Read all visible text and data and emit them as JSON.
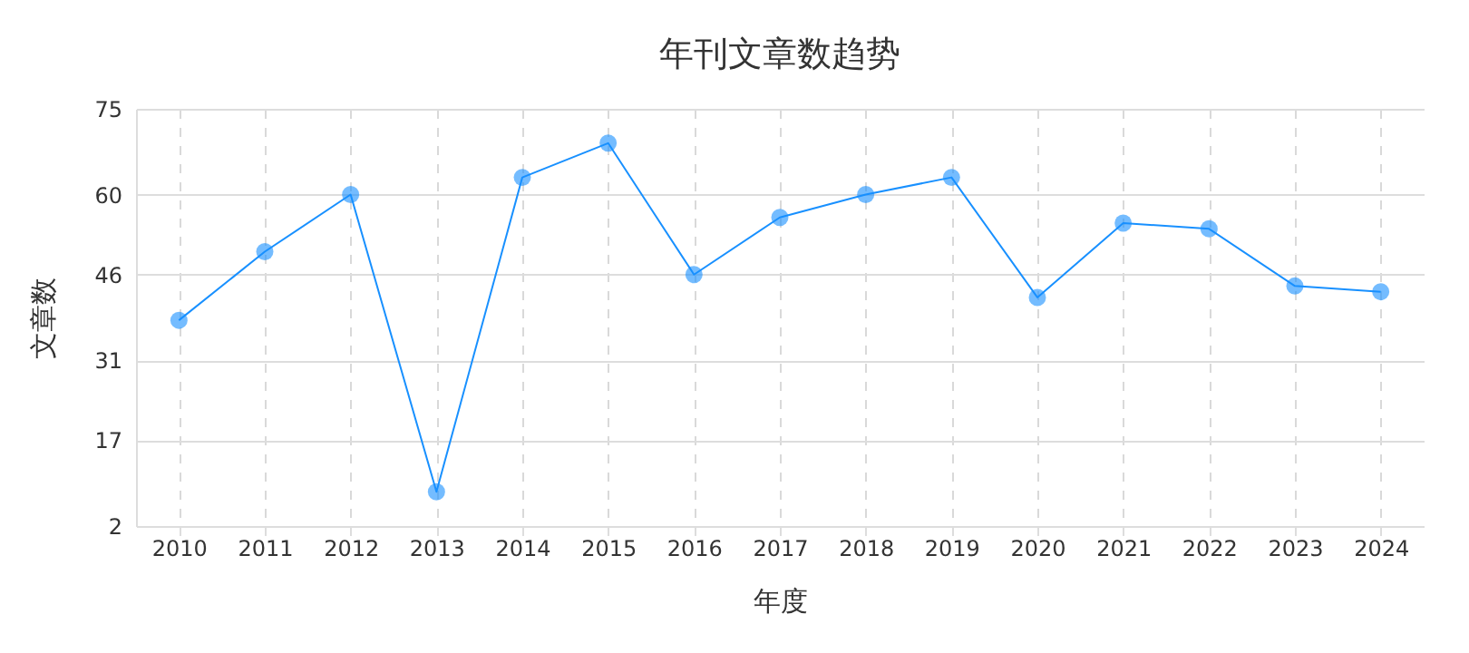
{
  "chart_data": {
    "type": "line",
    "title": "年刊文章数趋势",
    "xlabel": "年度",
    "ylabel": "文章数",
    "categories": [
      "2010",
      "2011",
      "2012",
      "2013",
      "2014",
      "2015",
      "2016",
      "2017",
      "2018",
      "2019",
      "2020",
      "2021",
      "2022",
      "2023",
      "2024"
    ],
    "series": [
      {
        "color": "#1890ff",
        "values": [
          38,
          50,
          60,
          8,
          63,
          69,
          46,
          56,
          60,
          63,
          42,
          55,
          54,
          44,
          43
        ]
      }
    ],
    "ylim": [
      2,
      75
    ],
    "yticks": [
      2,
      17,
      31,
      46,
      60,
      75
    ],
    "grid": true,
    "marker": "circle",
    "line_style": "solid"
  }
}
